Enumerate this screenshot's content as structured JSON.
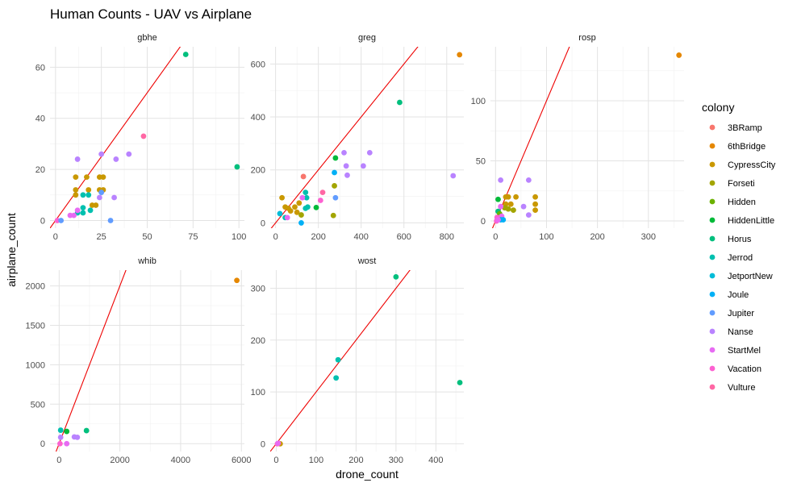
{
  "chart_data": {
    "type": "scatter",
    "title": "Human Counts -  UAV vs Airplane",
    "xlabel": "drone_count",
    "ylabel": "airplane_count",
    "reference_line": {
      "slope": 1,
      "intercept": 0,
      "color": "#ee0000"
    },
    "legend": {
      "title": "colony",
      "placement": "right",
      "entries": [
        {
          "name": "3BRamp",
          "color": "#F8766D"
        },
        {
          "name": "6thBridge",
          "color": "#E58700"
        },
        {
          "name": "CypressCity",
          "color": "#C99800"
        },
        {
          "name": "Forseti",
          "color": "#A3A500"
        },
        {
          "name": "Hidden",
          "color": "#6BB100"
        },
        {
          "name": "HiddenLittle",
          "color": "#00BA38"
        },
        {
          "name": "Horus",
          "color": "#00BF7D"
        },
        {
          "name": "Jerrod",
          "color": "#00C0AF"
        },
        {
          "name": "JetportNew",
          "color": "#00BCD8"
        },
        {
          "name": "Joule",
          "color": "#00B0F6"
        },
        {
          "name": "Jupiter",
          "color": "#619CFF"
        },
        {
          "name": "Nanse",
          "color": "#B983FF"
        },
        {
          "name": "StartMel",
          "color": "#E76BF3"
        },
        {
          "name": "Vacation",
          "color": "#FD61D1"
        },
        {
          "name": "Vulture",
          "color": "#FF67A4"
        }
      ]
    },
    "panels": [
      {
        "species": "gbhe",
        "xlim": [
          -3,
          103
        ],
        "ylim": [
          -3,
          68
        ],
        "xticks": [
          0,
          25,
          50,
          75,
          100
        ],
        "xticklabels": [
          "0",
          "25",
          "50",
          "75",
          "100"
        ],
        "yticks": [
          0,
          20,
          40,
          60
        ],
        "yticklabels": [
          "0",
          "20",
          "40",
          "60"
        ],
        "points": [
          {
            "x": 71,
            "y": 65,
            "colony": "Horus"
          },
          {
            "x": 99,
            "y": 21,
            "colony": "Horus"
          },
          {
            "x": 48,
            "y": 33,
            "colony": "Vulture"
          },
          {
            "x": 40,
            "y": 26,
            "colony": "Nanse"
          },
          {
            "x": 25,
            "y": 26,
            "colony": "Nanse"
          },
          {
            "x": 33,
            "y": 24,
            "colony": "Nanse"
          },
          {
            "x": 12,
            "y": 24,
            "colony": "Nanse"
          },
          {
            "x": 11,
            "y": 17,
            "colony": "CypressCity"
          },
          {
            "x": 17,
            "y": 17,
            "colony": "CypressCity"
          },
          {
            "x": 24,
            "y": 17,
            "colony": "CypressCity"
          },
          {
            "x": 26,
            "y": 17,
            "colony": "CypressCity"
          },
          {
            "x": 11,
            "y": 12,
            "colony": "CypressCity"
          },
          {
            "x": 18,
            "y": 12,
            "colony": "CypressCity"
          },
          {
            "x": 24,
            "y": 12,
            "colony": "CypressCity"
          },
          {
            "x": 26,
            "y": 12,
            "colony": "CypressCity"
          },
          {
            "x": 15,
            "y": 10,
            "colony": "Jerrod"
          },
          {
            "x": 18,
            "y": 10,
            "colony": "Jerrod"
          },
          {
            "x": 11,
            "y": 10,
            "colony": "CypressCity"
          },
          {
            "x": 20,
            "y": 6,
            "colony": "CypressCity"
          },
          {
            "x": 22,
            "y": 6,
            "colony": "CypressCity"
          },
          {
            "x": 15,
            "y": 5,
            "colony": "Jerrod"
          },
          {
            "x": 19,
            "y": 4,
            "colony": "Jerrod"
          },
          {
            "x": 15,
            "y": 3,
            "colony": "Jerrod"
          },
          {
            "x": 12,
            "y": 3,
            "colony": "Jerrod"
          },
          {
            "x": 25,
            "y": 11,
            "colony": "Jupiter"
          },
          {
            "x": 24,
            "y": 9,
            "colony": "Nanse"
          },
          {
            "x": 32,
            "y": 9,
            "colony": "Nanse"
          },
          {
            "x": 30,
            "y": 0,
            "colony": "Jupiter"
          },
          {
            "x": 12,
            "y": 4,
            "colony": "StartMel"
          },
          {
            "x": 8,
            "y": 2,
            "colony": "StartMel"
          },
          {
            "x": 10,
            "y": 2,
            "colony": "StartMel"
          },
          {
            "x": 1,
            "y": 0,
            "colony": "Vacation"
          },
          {
            "x": 3,
            "y": 0,
            "colony": "Jupiter"
          }
        ]
      },
      {
        "species": "greg",
        "xlim": [
          -25,
          880
        ],
        "ylim": [
          -20,
          665
        ],
        "xticks": [
          0,
          200,
          400,
          600,
          800
        ],
        "xticklabels": [
          "0",
          "200",
          "400",
          "600",
          "800"
        ],
        "yticks": [
          0,
          200,
          400,
          600
        ],
        "yticklabels": [
          "0",
          "200",
          "400",
          "600"
        ],
        "points": [
          {
            "x": 860,
            "y": 635,
            "colony": "6thBridge"
          },
          {
            "x": 580,
            "y": 455,
            "colony": "Horus"
          },
          {
            "x": 830,
            "y": 178,
            "colony": "Nanse"
          },
          {
            "x": 440,
            "y": 265,
            "colony": "Nanse"
          },
          {
            "x": 320,
            "y": 265,
            "colony": "Nanse"
          },
          {
            "x": 410,
            "y": 215,
            "colony": "Nanse"
          },
          {
            "x": 330,
            "y": 215,
            "colony": "Nanse"
          },
          {
            "x": 335,
            "y": 180,
            "colony": "Nanse"
          },
          {
            "x": 280,
            "y": 245,
            "colony": "HiddenLittle"
          },
          {
            "x": 275,
            "y": 190,
            "colony": "Joule"
          },
          {
            "x": 280,
            "y": 95,
            "colony": "Jupiter"
          },
          {
            "x": 275,
            "y": 140,
            "colony": "Forseti"
          },
          {
            "x": 270,
            "y": 28,
            "colony": "Forseti"
          },
          {
            "x": 130,
            "y": 175,
            "colony": "3BRamp"
          },
          {
            "x": 220,
            "y": 115,
            "colony": "Vulture"
          },
          {
            "x": 210,
            "y": 85,
            "colony": "Vacation"
          },
          {
            "x": 190,
            "y": 58,
            "colony": "HiddenLittle"
          },
          {
            "x": 140,
            "y": 115,
            "colony": "Jerrod"
          },
          {
            "x": 145,
            "y": 95,
            "colony": "Jerrod"
          },
          {
            "x": 125,
            "y": 95,
            "colony": "StartMel"
          },
          {
            "x": 110,
            "y": 75,
            "colony": "CypressCity"
          },
          {
            "x": 90,
            "y": 60,
            "colony": "CypressCity"
          },
          {
            "x": 60,
            "y": 55,
            "colony": "CypressCity"
          },
          {
            "x": 45,
            "y": 60,
            "colony": "CypressCity"
          },
          {
            "x": 30,
            "y": 95,
            "colony": "CypressCity"
          },
          {
            "x": 100,
            "y": 40,
            "colony": "CypressCity"
          },
          {
            "x": 70,
            "y": 45,
            "colony": "CypressCity"
          },
          {
            "x": 140,
            "y": 55,
            "colony": "Jerrod"
          },
          {
            "x": 150,
            "y": 60,
            "colony": "Jerrod"
          },
          {
            "x": 120,
            "y": 30,
            "colony": "Forseti"
          },
          {
            "x": 45,
            "y": 20,
            "colony": "Jerrod"
          },
          {
            "x": 20,
            "y": 35,
            "colony": "JetportNew"
          },
          {
            "x": 120,
            "y": 0,
            "colony": "Joule"
          },
          {
            "x": 55,
            "y": 20,
            "colony": "StartMel"
          }
        ]
      },
      {
        "species": "rosp",
        "xlim": [
          -10,
          370
        ],
        "ylim": [
          -6,
          145
        ],
        "xticks": [
          0,
          100,
          200,
          300
        ],
        "xticklabels": [
          "0",
          "100",
          "200",
          "300"
        ],
        "yticks": [
          0,
          50,
          100
        ],
        "yticklabels": [
          "0",
          "50",
          "100"
        ],
        "points": [
          {
            "x": 360,
            "y": 138,
            "colony": "6thBridge"
          },
          {
            "x": 10,
            "y": 34,
            "colony": "Nanse"
          },
          {
            "x": 65,
            "y": 34,
            "colony": "Nanse"
          },
          {
            "x": 20,
            "y": 20,
            "colony": "CypressCity"
          },
          {
            "x": 25,
            "y": 20,
            "colony": "CypressCity"
          },
          {
            "x": 40,
            "y": 20,
            "colony": "CypressCity"
          },
          {
            "x": 78,
            "y": 20,
            "colony": "CypressCity"
          },
          {
            "x": 5,
            "y": 18,
            "colony": "HiddenLittle"
          },
          {
            "x": 20,
            "y": 14,
            "colony": "CypressCity"
          },
          {
            "x": 30,
            "y": 14,
            "colony": "CypressCity"
          },
          {
            "x": 78,
            "y": 14,
            "colony": "CypressCity"
          },
          {
            "x": 78,
            "y": 9,
            "colony": "CypressCity"
          },
          {
            "x": 25,
            "y": 10,
            "colony": "Forseti"
          },
          {
            "x": 35,
            "y": 9,
            "colony": "Forseti"
          },
          {
            "x": 18,
            "y": 11,
            "colony": "Forseti"
          },
          {
            "x": 55,
            "y": 12,
            "colony": "Nanse"
          },
          {
            "x": 65,
            "y": 5,
            "colony": "Nanse"
          },
          {
            "x": 10,
            "y": 12,
            "colony": "StartMel"
          },
          {
            "x": 5,
            "y": 8,
            "colony": "Horus"
          },
          {
            "x": 8,
            "y": 6,
            "colony": "Hidden"
          },
          {
            "x": 12,
            "y": 4,
            "colony": "StartMel"
          },
          {
            "x": 15,
            "y": 1,
            "colony": "Joule"
          },
          {
            "x": 10,
            "y": 1,
            "colony": "Joule"
          },
          {
            "x": 3,
            "y": 3,
            "colony": "Vacation"
          },
          {
            "x": 2,
            "y": 0,
            "colony": "Vacation"
          },
          {
            "x": 5,
            "y": 1,
            "colony": "StartMel"
          }
        ]
      },
      {
        "species": "whib",
        "xlim": [
          -300,
          6100
        ],
        "ylim": [
          -100,
          2200
        ],
        "xticks": [
          0,
          2000,
          4000,
          6000
        ],
        "xticklabels": [
          "0",
          "2000",
          "4000",
          "6000"
        ],
        "yticks": [
          0,
          500,
          1000,
          1500,
          2000
        ],
        "yticklabels": [
          "0",
          "500",
          "1000",
          "1500",
          "2000"
        ],
        "points": [
          {
            "x": 5850,
            "y": 2070,
            "colony": "6thBridge"
          },
          {
            "x": 900,
            "y": 165,
            "colony": "Horus"
          },
          {
            "x": 250,
            "y": 155,
            "colony": "HiddenLittle"
          },
          {
            "x": 50,
            "y": 170,
            "colony": "Jerrod"
          },
          {
            "x": 500,
            "y": 85,
            "colony": "Nanse"
          },
          {
            "x": 600,
            "y": 80,
            "colony": "Nanse"
          },
          {
            "x": 50,
            "y": 80,
            "colony": "Nanse"
          },
          {
            "x": 250,
            "y": 0,
            "colony": "StartMel"
          },
          {
            "x": 30,
            "y": 0,
            "colony": "Vacation"
          }
        ]
      },
      {
        "species": "wost",
        "xlim": [
          -15,
          470
        ],
        "ylim": [
          -15,
          335
        ],
        "xticks": [
          0,
          100,
          200,
          300,
          400
        ],
        "xticklabels": [
          "0",
          "100",
          "200",
          "300",
          "400"
        ],
        "yticks": [
          0,
          100,
          200,
          300
        ],
        "yticklabels": [
          "0",
          "100",
          "200",
          "300"
        ],
        "points": [
          {
            "x": 300,
            "y": 322,
            "colony": "Horus"
          },
          {
            "x": 460,
            "y": 118,
            "colony": "Horus"
          },
          {
            "x": 155,
            "y": 162,
            "colony": "Jerrod"
          },
          {
            "x": 150,
            "y": 127,
            "colony": "Jerrod"
          },
          {
            "x": 10,
            "y": 0,
            "colony": "CypressCity"
          },
          {
            "x": 3,
            "y": 0,
            "colony": "Vacation"
          },
          {
            "x": 5,
            "y": 1,
            "colony": "StartMel"
          }
        ]
      }
    ]
  }
}
